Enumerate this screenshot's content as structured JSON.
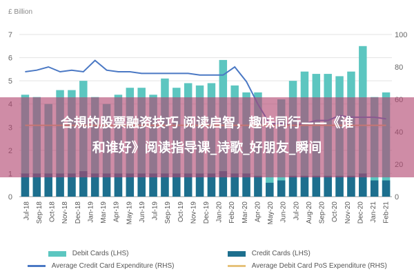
{
  "chart_data": {
    "type": "bar",
    "left_axis_unit": "£ Billion",
    "categories": [
      "Jul-18",
      "Aug-18",
      "Sep-18",
      "Oct-18",
      "Nov-18",
      "Dec-18",
      "Jan-19",
      "Feb-19",
      "Mar-19",
      "Apr-19",
      "May-19",
      "Jun-19",
      "Jul-19",
      "Aug-19",
      "Sep-19",
      "Oct-19",
      "Nov-19",
      "Dec-19",
      "Jan-20",
      "Feb-20",
      "Mar-20",
      "Apr-20",
      "May-20",
      "Jun-20",
      "Jul-20",
      "Aug-20",
      "Sep-20",
      "Oct-20",
      "Nov-20",
      "Dec-20",
      "Jan-21",
      "Feb-21"
    ],
    "x_tick_labels": [
      "Jul-18",
      "Sep-18",
      "Oct-18",
      "Nov-18",
      "Dec-18",
      "Jan-19",
      "Mar-19",
      "Apr-19",
      "May-19",
      "Jun-19",
      "Jul-19",
      "Sep-19",
      "Oct-19",
      "Nov-19",
      "Dec-19",
      "Jan-20",
      "Feb-20",
      "Mar-20",
      "Apr-20",
      "May-20",
      "Jun-20",
      "Jul-20",
      "Aug-20",
      "Sep-20",
      "Oct-20",
      "Nov-20",
      "Dec-20",
      "Jan-21",
      "Feb-21"
    ],
    "left_axis": {
      "min": 0,
      "max": 7,
      "ticks": [
        0,
        1,
        2,
        3,
        4,
        5,
        6,
        7
      ]
    },
    "right_axis": {
      "min": 0,
      "max": 100,
      "ticks": [
        0,
        20,
        40,
        60,
        80,
        100
      ]
    },
    "series": [
      {
        "name": "Debit Cards (LHS)",
        "type": "bar",
        "axis": "left",
        "color": "#5cc6c0",
        "values": [
          4.4,
          4.3,
          4.0,
          4.6,
          4.6,
          5.0,
          4.3,
          4.0,
          4.4,
          4.7,
          4.7,
          4.4,
          5.1,
          4.7,
          4.9,
          4.8,
          4.9,
          5.9,
          4.8,
          4.5,
          4.5,
          3.0,
          4.2,
          5.0,
          5.4,
          5.3,
          5.3,
          5.2,
          5.4,
          6.5,
          4.3,
          4.5
        ]
      },
      {
        "name": "Credit Cards (LHS)",
        "type": "bar",
        "axis": "left",
        "color": "#1d6f8e",
        "values": [
          1.0,
          1.0,
          1.0,
          1.0,
          1.0,
          1.1,
          1.0,
          1.0,
          1.0,
          1.0,
          1.0,
          1.0,
          1.0,
          1.0,
          1.0,
          1.0,
          1.0,
          1.1,
          1.0,
          1.0,
          0.9,
          0.6,
          0.7,
          0.9,
          0.9,
          0.9,
          0.9,
          0.9,
          0.9,
          1.0,
          0.7,
          0.7
        ]
      },
      {
        "name": "Average Credit Card Expenditure (RHS)",
        "type": "line",
        "axis": "right",
        "color": "#4a78c4",
        "values": [
          77,
          78,
          80,
          77,
          78,
          77,
          84,
          78,
          77,
          77,
          76,
          76,
          76,
          76,
          76,
          75,
          75,
          75,
          80,
          71,
          57,
          45,
          45,
          44,
          45,
          47,
          47,
          50,
          49,
          49,
          49,
          48
        ]
      },
      {
        "name": "Average Debit Card PoS Expenditure (RHS)",
        "type": "line",
        "axis": "right",
        "color": "#e6c27a",
        "values": [
          44,
          44,
          44,
          44,
          44,
          44,
          44,
          44,
          44,
          44,
          44,
          44,
          44,
          44,
          44,
          44,
          44,
          44,
          44,
          44,
          44,
          44,
          44,
          44,
          44,
          44,
          44,
          44,
          44,
          44,
          44,
          44
        ]
      }
    ],
    "legend_position": "bottom",
    "grid": true
  },
  "overlay": {
    "line1": "合規的股票融资技巧 阅读启智，趣味同行——《谁",
    "line2": "和谁好》阅读指导课_诗歌_好朋友_瞬间"
  }
}
